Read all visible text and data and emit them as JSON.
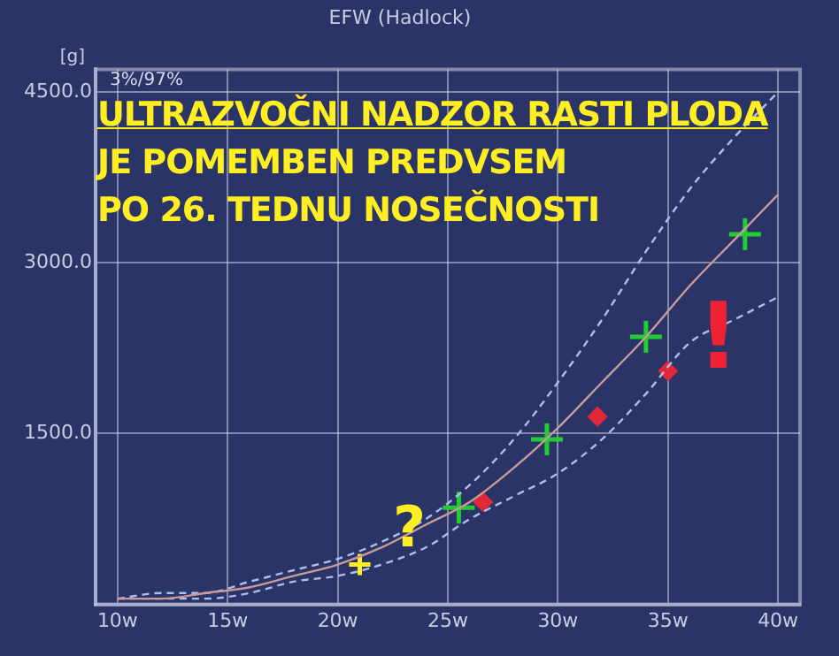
{
  "chart_data": {
    "type": "line",
    "title": "EFW (Hadlock)",
    "ylabel": "[g]",
    "xlim": [
      9,
      41
    ],
    "ylim": [
      0,
      4700
    ],
    "xticks": [
      {
        "value": 10,
        "label": "10w"
      },
      {
        "value": 15,
        "label": "15w"
      },
      {
        "value": 20,
        "label": "20w"
      },
      {
        "value": 25,
        "label": "25w"
      },
      {
        "value": 30,
        "label": "30w"
      },
      {
        "value": 35,
        "label": "35w"
      },
      {
        "value": 40,
        "label": "40w"
      }
    ],
    "yticks": [
      {
        "value": 1500,
        "label": "1500.0"
      },
      {
        "value": 3000,
        "label": "3000.0"
      },
      {
        "value": 4500,
        "label": "4500.0"
      }
    ],
    "grid": true,
    "legend": false,
    "series": [
      {
        "type": "line",
        "color": "#c89a9a",
        "line_style": "solid",
        "marker": "none",
        "x": [
          10,
          12,
          14,
          16,
          18,
          20,
          22,
          24,
          26,
          28,
          30,
          32,
          34,
          36,
          38,
          40
        ],
        "values": [
          50,
          50,
          100,
          150,
          250,
          350,
          500,
          700,
          900,
          1200,
          1550,
          1950,
          2350,
          2800,
          3200,
          3600
        ]
      },
      {
        "type": "line",
        "color": "#a8bff0",
        "line_style": "dashed",
        "marker": "none",
        "x": [
          10,
          12,
          14,
          16,
          18,
          20,
          22,
          24,
          26,
          28,
          30,
          32,
          34,
          36,
          38,
          40
        ],
        "values": [
          50,
          100,
          100,
          200,
          300,
          400,
          550,
          750,
          1050,
          1450,
          1950,
          2500,
          3100,
          3650,
          4100,
          4500
        ]
      },
      {
        "type": "line",
        "color": "#a8bff0",
        "line_style": "dashed",
        "marker": "none",
        "x": [
          10,
          12,
          14,
          16,
          18,
          20,
          22,
          24,
          26,
          28,
          30,
          32,
          34,
          36,
          38,
          40
        ],
        "values": [
          50,
          50,
          50,
          100,
          200,
          250,
          350,
          500,
          750,
          950,
          1150,
          1450,
          1850,
          2300,
          2500,
          2700
        ]
      },
      {
        "type": "scatter",
        "color": "#22cc33",
        "marker": "cross",
        "x": [
          25.5,
          29.5,
          34,
          38.5
        ],
        "values": [
          850,
          1450,
          2350,
          3250
        ]
      },
      {
        "type": "scatter",
        "color": "#ffee22",
        "marker": "cross",
        "x": [
          21
        ],
        "values": [
          350
        ]
      },
      {
        "type": "scatter",
        "color": "#e0283a",
        "marker": "diamond",
        "x": [
          26.6,
          31.8,
          35
        ],
        "values": [
          900,
          1650,
          2050
        ]
      }
    ],
    "annotations": [
      "3%/97%",
      "ULTRAZVOČNI NADZOR RASTI PLODA",
      "JE POMEMBEN PREDVSEM",
      "PO 26. TEDNU NOSEČNOSTI",
      "?",
      "!"
    ]
  }
}
